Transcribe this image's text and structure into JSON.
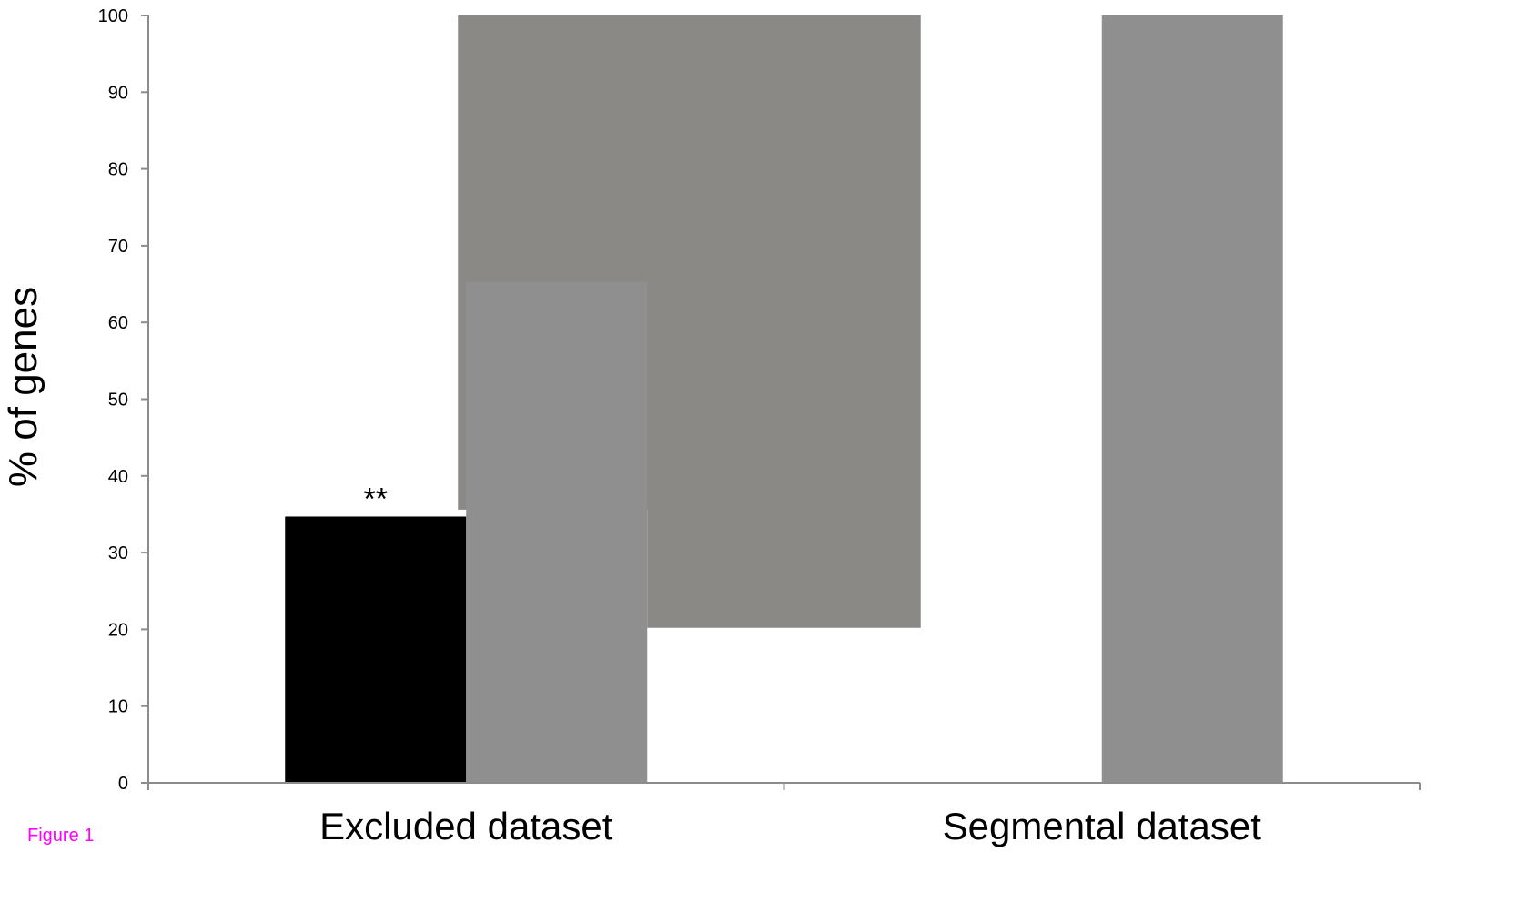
{
  "figure_label": "Figure 1",
  "chart_data": {
    "type": "bar",
    "ylabel": "% of genes",
    "ylim": [
      0,
      100
    ],
    "yticks": [
      0,
      10,
      20,
      30,
      40,
      50,
      60,
      70,
      80,
      90,
      100
    ],
    "categories": [
      "Excluded dataset",
      "Segmental dataset"
    ],
    "grid": false,
    "series": [
      {
        "color": "#000000",
        "values": [
          34.7,
          null
        ],
        "labels": [
          "**",
          null
        ]
      },
      {
        "color": "#8f8f8f",
        "values": [
          65.3,
          100
        ]
      }
    ],
    "background_band": {
      "color": "#8a8986",
      "from_category": "Excluded dataset",
      "to_category": "Segmental dataset",
      "y_top": 100,
      "y_bottom_left": 35.6,
      "y_bottom_right": 20.2
    }
  }
}
